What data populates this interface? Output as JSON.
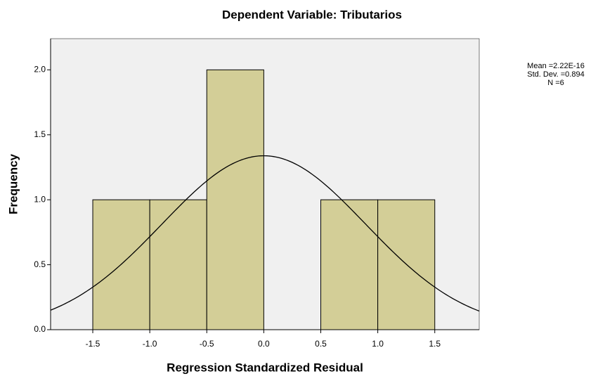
{
  "chart_data": {
    "type": "histogram",
    "title": "Dependent Variable: Tributarios",
    "xlabel": "Regression Standardized Residual",
    "ylabel": "Frequency",
    "bins": [
      -1.5,
      -1.0,
      -0.5,
      0.0,
      0.5,
      1.0,
      1.5
    ],
    "values": [
      1,
      1,
      2,
      0,
      1,
      1
    ],
    "color": "#d3ce97",
    "xlim": [
      -1.87,
      1.89
    ],
    "ylim": [
      0,
      2.24
    ],
    "xticks": [
      -1.5,
      {
        "value": -1.0,
        "label": "-1.0"
      },
      -0.5,
      {
        "value": 0,
        "label": "0.0"
      },
      0.5,
      {
        "value": 1.0,
        "label": "1.0"
      },
      1.5
    ],
    "yticks": [
      {
        "value": 0,
        "label": "0.0"
      },
      0.5,
      {
        "value": 1.0,
        "label": "1.0"
      },
      1.5,
      {
        "value": 2.0,
        "label": "2.0"
      }
    ],
    "stats": {
      "mean": {
        "value": 2.22e-16,
        "label": "Mean =2.22E-16"
      },
      "sd": {
        "value": 0.894,
        "label": "Std. Dev. =0.894"
      },
      "n": {
        "value": 6,
        "label": "N =6"
      }
    },
    "normal_curve": true
  }
}
